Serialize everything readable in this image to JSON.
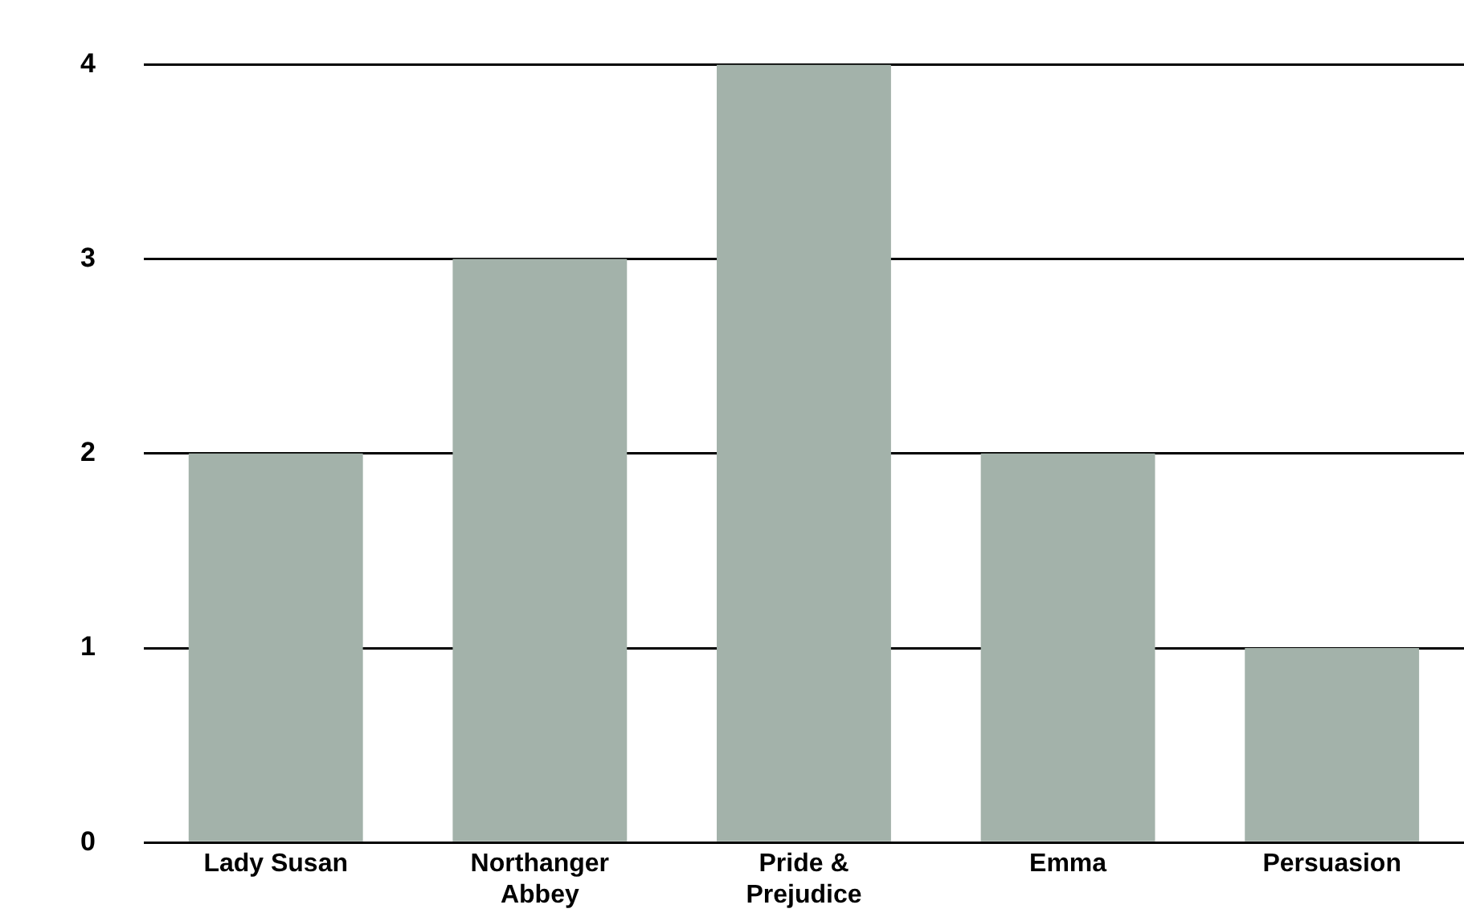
{
  "chart_data": {
    "type": "bar",
    "categories": [
      "Lady Susan",
      "Northanger Abbey",
      "Pride & Prejudice",
      "Emma",
      "Persuasion"
    ],
    "values": [
      2,
      3,
      4,
      2,
      1
    ],
    "color": "#a3b2aa",
    "ylim": [
      0,
      4
    ],
    "yticks": [
      0,
      1,
      2,
      3,
      4
    ],
    "grid": "y",
    "legend": false
  }
}
